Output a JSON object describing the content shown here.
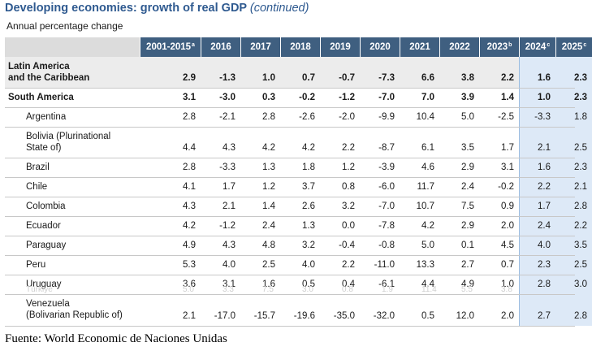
{
  "title": {
    "main": "Developing economies: growth of real GDP",
    "continued": "(continued)"
  },
  "subtitle": "Annual percentage change",
  "columns": [
    {
      "label": "2001-2015",
      "sup": "a"
    },
    {
      "label": "2016",
      "sup": ""
    },
    {
      "label": "2017",
      "sup": ""
    },
    {
      "label": "2018",
      "sup": ""
    },
    {
      "label": "2019",
      "sup": ""
    },
    {
      "label": "2020",
      "sup": ""
    },
    {
      "label": "2021",
      "sup": ""
    },
    {
      "label": "2022",
      "sup": ""
    },
    {
      "label": "2023",
      "sup": "b"
    },
    {
      "label": "2024",
      "sup": "c"
    },
    {
      "label": "2025",
      "sup": "c"
    }
  ],
  "rows": [
    {
      "label1": "Latin America",
      "label2": "and the Caribbean",
      "values": [
        "2.9",
        "-1.3",
        "1.0",
        "0.7",
        "-0.7",
        "-7.3",
        "6.6",
        "3.8",
        "2.2",
        "1.6",
        "2.3"
      ]
    },
    {
      "label1": "South America",
      "label2": "",
      "values": [
        "3.1",
        "-3.0",
        "0.3",
        "-0.2",
        "-1.2",
        "-7.0",
        "7.0",
        "3.9",
        "1.4",
        "1.0",
        "2.3"
      ]
    },
    {
      "label1": "Argentina",
      "label2": "",
      "values": [
        "2.8",
        "-2.1",
        "2.8",
        "-2.6",
        "-2.0",
        "-9.9",
        "10.4",
        "5.0",
        "-2.5",
        "-3.3",
        "1.8"
      ]
    },
    {
      "label1": "Bolivia (Plurinational",
      "label2": "State of)",
      "values": [
        "4.4",
        "4.3",
        "4.2",
        "4.2",
        "2.2",
        "-8.7",
        "6.1",
        "3.5",
        "1.7",
        "2.1",
        "2.5"
      ]
    },
    {
      "label1": "Brazil",
      "label2": "",
      "values": [
        "2.8",
        "-3.3",
        "1.3",
        "1.8",
        "1.2",
        "-3.9",
        "4.6",
        "2.9",
        "3.1",
        "1.6",
        "2.3"
      ]
    },
    {
      "label1": "Chile",
      "label2": "",
      "values": [
        "4.1",
        "1.7",
        "1.2",
        "3.7",
        "0.8",
        "-6.0",
        "11.7",
        "2.4",
        "-0.2",
        "2.2",
        "2.1"
      ]
    },
    {
      "label1": "Colombia",
      "label2": "",
      "values": [
        "4.3",
        "2.1",
        "1.4",
        "2.6",
        "3.2",
        "-7.0",
        "10.7",
        "7.5",
        "0.9",
        "1.7",
        "2.8"
      ]
    },
    {
      "label1": "Ecuador",
      "label2": "",
      "values": [
        "4.2",
        "-1.2",
        "2.4",
        "1.3",
        "0.0",
        "-7.8",
        "4.2",
        "2.9",
        "2.0",
        "2.4",
        "2.2"
      ]
    },
    {
      "label1": "Paraguay",
      "label2": "",
      "values": [
        "4.9",
        "4.3",
        "4.8",
        "3.2",
        "-0.4",
        "-0.8",
        "5.0",
        "0.1",
        "4.5",
        "4.0",
        "3.5"
      ]
    },
    {
      "label1": "Peru",
      "label2": "",
      "values": [
        "5.3",
        "4.0",
        "2.5",
        "4.0",
        "2.2",
        "-11.0",
        "13.3",
        "2.7",
        "0.7",
        "2.3",
        "2.5"
      ]
    },
    {
      "label1": "Uruguay",
      "label2": "",
      "values": [
        "3.6",
        "3.1",
        "1.6",
        "0.5",
        "0.4",
        "-6.1",
        "4.4",
        "4.9",
        "1.0",
        "2.8",
        "3.0"
      ]
    },
    {
      "label1": "Venezuela",
      "label2": "(Bolivarian Republic of)",
      "values": [
        "2.1",
        "-17.0",
        "-15.7",
        "-19.6",
        "-35.0",
        "-32.0",
        "0.5",
        "12.0",
        "2.0",
        "2.7",
        "2.8"
      ]
    }
  ],
  "ghost_row": {
    "label": "Türkiye",
    "values": [
      "5.0",
      "3.3",
      "7.5",
      "3.0",
      "0.8",
      "1.9",
      "11.4",
      "5.5",
      "3.8"
    ]
  },
  "source": "Fuente: World Economic de Naciones Unidas",
  "colors": {
    "title": "#2f5a90",
    "header_bg": "#3f5f80",
    "projection_bg": "#dde9f7"
  }
}
